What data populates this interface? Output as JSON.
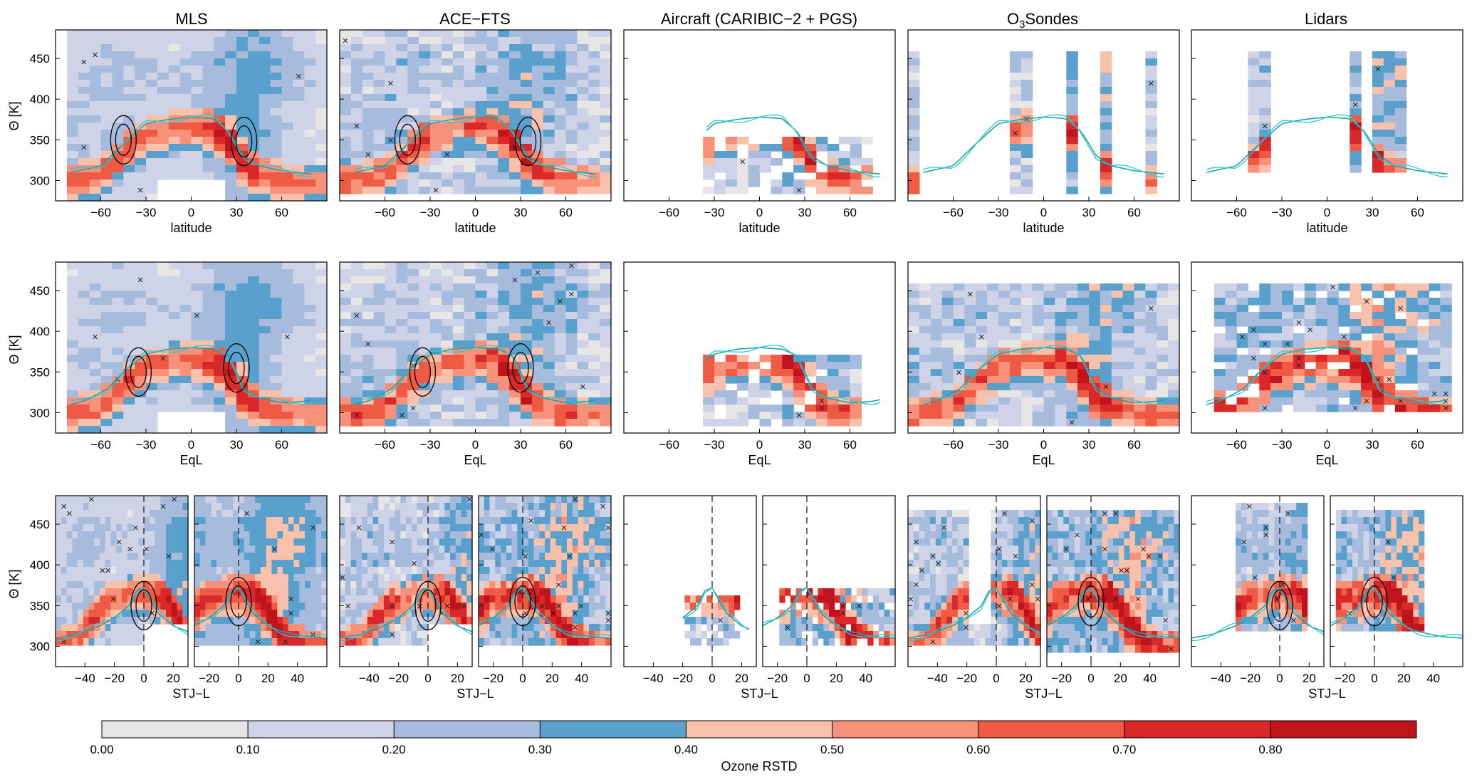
{
  "titles": [
    "MLS",
    "ACE−FTS",
    "Aircraft (CARIBIC−2 + PGS)",
    "O",
    "Lidars"
  ],
  "o3_title": {
    "sub": "3",
    "rest": "Sondes"
  },
  "ylabel": "Θ [K]",
  "row_xlabels": [
    "latitude",
    "EqL",
    "STJ−L"
  ],
  "theta_ticks": [
    "450",
    "400",
    "350",
    "300"
  ],
  "lat_ticks": [
    "−60",
    "−30",
    "0",
    "30",
    "60"
  ],
  "stj_left_ticks": [
    "−40",
    "−20",
    "0",
    "20"
  ],
  "stj_right_ticks": [
    "−20",
    "0",
    "20",
    "40"
  ],
  "colorbar": {
    "label": "Ozone RSTD",
    "tick_labels": [
      "0.00",
      "0.10",
      "0.20",
      "0.30",
      "0.40",
      "0.50",
      "0.60",
      "0.70",
      "0.80"
    ],
    "colors": [
      "#e6e6e6",
      "#cfd3e8",
      "#a7bcdc",
      "#5aa0cd",
      "#f8c1ac",
      "#f7917a",
      "#ef5a45",
      "#d9282a",
      "#c0141c"
    ]
  },
  "chart_data": {
    "type": "heatmap",
    "colorbar_bounds": [
      0.0,
      0.1,
      0.2,
      0.3,
      0.4,
      0.5,
      0.6,
      0.7,
      0.8,
      0.9
    ],
    "theta_range": [
      275,
      485
    ],
    "latitude_range": [
      -90,
      90
    ],
    "eql_range": [
      -90,
      90
    ],
    "stj_left_range": [
      -60,
      30
    ],
    "stj_right_range": [
      -30,
      60
    ],
    "line_colors": {
      "tropopause": "#1fa3a8",
      "tropopause_alt": "#27c9d6",
      "jet_contour": "#000000"
    },
    "tropopause_lat": {
      "x": [
        -80,
        -60,
        -45,
        -30,
        -15,
        0,
        15,
        25,
        30,
        35,
        45,
        60,
        80
      ],
      "theta": [
        310,
        318,
        345,
        370,
        375,
        378,
        376,
        360,
        345,
        330,
        318,
        312,
        308
      ]
    },
    "tropopause_eql": {
      "x": [
        -90,
        -70,
        -55,
        -45,
        -30,
        -15,
        0,
        15,
        25,
        30,
        35,
        45,
        60,
        75,
        90
      ],
      "theta": [
        305,
        315,
        330,
        350,
        372,
        378,
        380,
        378,
        370,
        350,
        330,
        318,
        312,
        314,
        320
      ]
    },
    "tropopause_stj": {
      "x": [
        -60,
        -45,
        -30,
        -20,
        -10,
        -5,
        0,
        5,
        10,
        20,
        30,
        45,
        60
      ],
      "theta": [
        310,
        315,
        325,
        335,
        350,
        368,
        372,
        355,
        340,
        325,
        318,
        312,
        310
      ]
    },
    "jet_core_lat": {
      "south": [
        -45,
        350
      ],
      "north": [
        35,
        348
      ]
    },
    "jet_core_eql": {
      "south": [
        -35,
        350
      ],
      "north": [
        30,
        355
      ]
    }
  }
}
